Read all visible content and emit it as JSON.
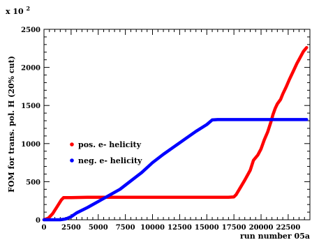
{
  "chart_data": {
    "type": "line",
    "multiplier_label": "x 10",
    "multiplier_exp": "2",
    "ylabel": "FOM for trans. pol. H (20% cut)",
    "xlabel": "run number 05a",
    "xlim": [
      0,
      24500
    ],
    "ylim": [
      0,
      2500
    ],
    "x_ticks": [
      0,
      2500,
      5000,
      7500,
      10000,
      12500,
      15000,
      17500,
      20000,
      22500
    ],
    "y_ticks": [
      0,
      500,
      1000,
      1500,
      2000,
      2500
    ],
    "x_tick_labels": [
      "0",
      "2500",
      "5000",
      "7500",
      "10000",
      "12500",
      "15000",
      "17500",
      "20000",
      "22500"
    ],
    "y_tick_labels": [
      "0",
      "500",
      "1000",
      "1500",
      "2000",
      "2500"
    ],
    "legend_position": "left-middle",
    "series": [
      {
        "name": "pos. e- helicity",
        "color": "#ff0000",
        "x": [
          0,
          400,
          800,
          1200,
          1600,
          1800,
          2500,
          4000,
          6000,
          8000,
          10000,
          12000,
          14000,
          16000,
          17000,
          17500,
          17700,
          18000,
          18500,
          19000,
          19300,
          19700,
          20000,
          20300,
          20600,
          20900,
          21100,
          21300,
          21500,
          21800,
          22000,
          22300,
          22600,
          23000,
          23300,
          23600,
          23900,
          24200
        ],
        "y": [
          0,
          20,
          80,
          170,
          260,
          290,
          290,
          295,
          295,
          295,
          295,
          295,
          295,
          295,
          295,
          300,
          330,
          400,
          520,
          650,
          780,
          850,
          930,
          1050,
          1150,
          1280,
          1380,
          1460,
          1520,
          1580,
          1650,
          1740,
          1840,
          1960,
          2050,
          2130,
          2210,
          2260
        ]
      },
      {
        "name": "neg. e- helicity",
        "color": "#0000ff",
        "x": [
          0,
          1500,
          2000,
          2500,
          3000,
          4000,
          5000,
          6000,
          7000,
          8000,
          9000,
          10000,
          11000,
          12000,
          13000,
          14000,
          15000,
          15500,
          16000,
          18000,
          20000,
          22000,
          24200
        ],
        "y": [
          0,
          0,
          10,
          40,
          90,
          160,
          240,
          320,
          400,
          510,
          620,
          750,
          860,
          960,
          1060,
          1160,
          1250,
          1310,
          1315,
          1315,
          1315,
          1315,
          1315
        ]
      }
    ]
  }
}
